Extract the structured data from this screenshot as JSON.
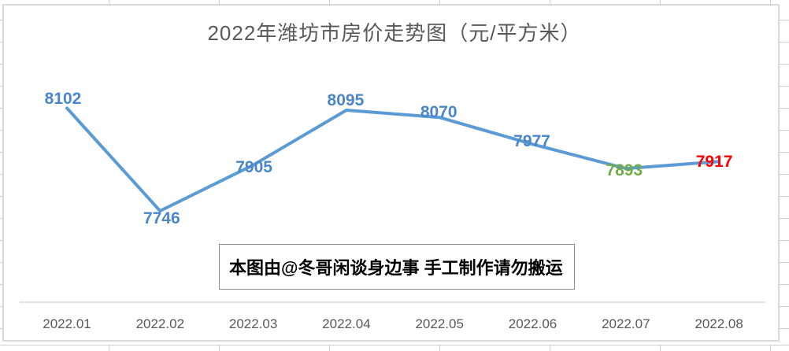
{
  "chart_data": {
    "type": "line",
    "title": "2022年潍坊市房价走势图（元/平方米）",
    "categories": [
      "2022.01",
      "2022.02",
      "2022.03",
      "2022.04",
      "2022.05",
      "2022.06",
      "2022.07",
      "2022.08"
    ],
    "values": [
      8102,
      7746,
      7905,
      8095,
      8070,
      7977,
      7893,
      7917
    ],
    "unit": "元/平方米",
    "line_color": "#5b9bd5",
    "value_label_colors": [
      "#4a86c8",
      "#4a86c8",
      "#4a86c8",
      "#4a86c8",
      "#4a86c8",
      "#4a86c8",
      "#70ad47",
      "#ff0000"
    ],
    "xlabel": "",
    "ylabel": "",
    "y_axis_visible": false,
    "grid": "off",
    "legend": "none"
  },
  "annotation_box": {
    "text": "本图由@冬哥闲谈身边事 手工制作请勿搬运"
  }
}
